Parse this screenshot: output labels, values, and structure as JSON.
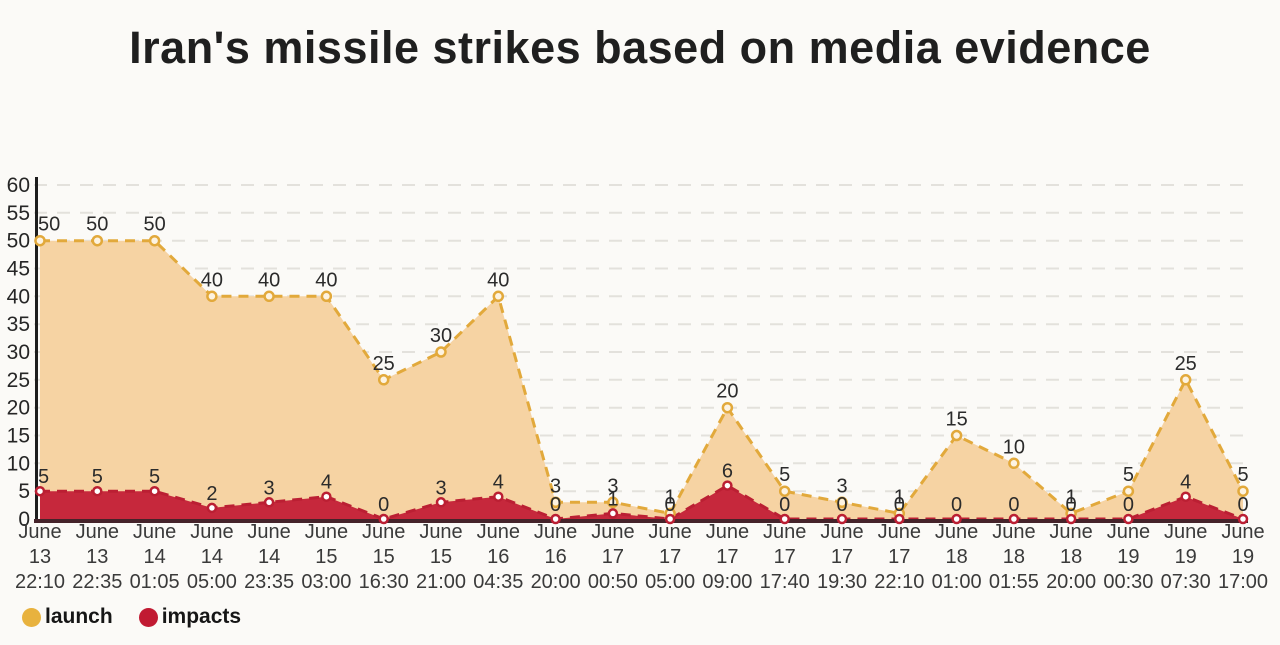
{
  "title": "Iran's missile strikes based on media evidence",
  "legend": [
    {
      "label": "launch",
      "color": "#E8B23E"
    },
    {
      "label": "impacts",
      "color": "#C11A32"
    }
  ],
  "chart_data": {
    "type": "area",
    "title": "Iran's missile strikes based on media evidence",
    "xlabel": "",
    "ylabel": "",
    "ylim": [
      0,
      60
    ],
    "yticks": [
      0,
      5,
      10,
      15,
      20,
      25,
      30,
      35,
      40,
      45,
      50,
      55,
      60
    ],
    "grid": true,
    "legend_position": "bottom-left",
    "categories": [
      {
        "month": "June",
        "day": "13",
        "time": "22:10"
      },
      {
        "month": "June",
        "day": "13",
        "time": "22:35"
      },
      {
        "month": "June",
        "day": "14",
        "time": "01:05"
      },
      {
        "month": "June",
        "day": "14",
        "time": "05:00"
      },
      {
        "month": "June",
        "day": "14",
        "time": "23:35"
      },
      {
        "month": "June",
        "day": "15",
        "time": "03:00"
      },
      {
        "month": "June",
        "day": "15",
        "time": "16:30"
      },
      {
        "month": "June",
        "day": "15",
        "time": "21:00"
      },
      {
        "month": "June",
        "day": "16",
        "time": "04:35"
      },
      {
        "month": "June",
        "day": "16",
        "time": "20:00"
      },
      {
        "month": "June",
        "day": "17",
        "time": "00:50"
      },
      {
        "month": "June",
        "day": "17",
        "time": "05:00"
      },
      {
        "month": "June",
        "day": "17",
        "time": "09:00"
      },
      {
        "month": "June",
        "day": "17",
        "time": "17:40"
      },
      {
        "month": "June",
        "day": "17",
        "time": "19:30"
      },
      {
        "month": "June",
        "day": "17",
        "time": "22:10"
      },
      {
        "month": "June",
        "day": "18",
        "time": "01:00"
      },
      {
        "month": "June",
        "day": "18",
        "time": "01:55"
      },
      {
        "month": "June",
        "day": "18",
        "time": "20:00"
      },
      {
        "month": "June",
        "day": "19",
        "time": "00:30"
      },
      {
        "month": "June",
        "day": "19",
        "time": "07:30"
      },
      {
        "month": "June",
        "day": "19",
        "time": "17:00"
      }
    ],
    "series": [
      {
        "name": "launch",
        "values": [
          50,
          50,
          50,
          40,
          40,
          40,
          25,
          30,
          40,
          3,
          3,
          1,
          20,
          5,
          3,
          1,
          15,
          10,
          1,
          5,
          25,
          5
        ],
        "line_color": "#E2A93B",
        "fill_color": "#F6D3A3",
        "marker_fill": "#FDF3E1"
      },
      {
        "name": "impacts",
        "values": [
          5,
          5,
          5,
          2,
          3,
          4,
          0,
          3,
          4,
          0,
          1,
          0,
          6,
          0,
          0,
          0,
          0,
          0,
          0,
          0,
          4,
          0
        ],
        "line_color": "#BB1F33",
        "fill_color": "#C6283C",
        "marker_fill": "#FFFFFF"
      }
    ],
    "axis_colors": {
      "y_axis": "#1D1D1D",
      "x_axis": "#45232A"
    }
  }
}
